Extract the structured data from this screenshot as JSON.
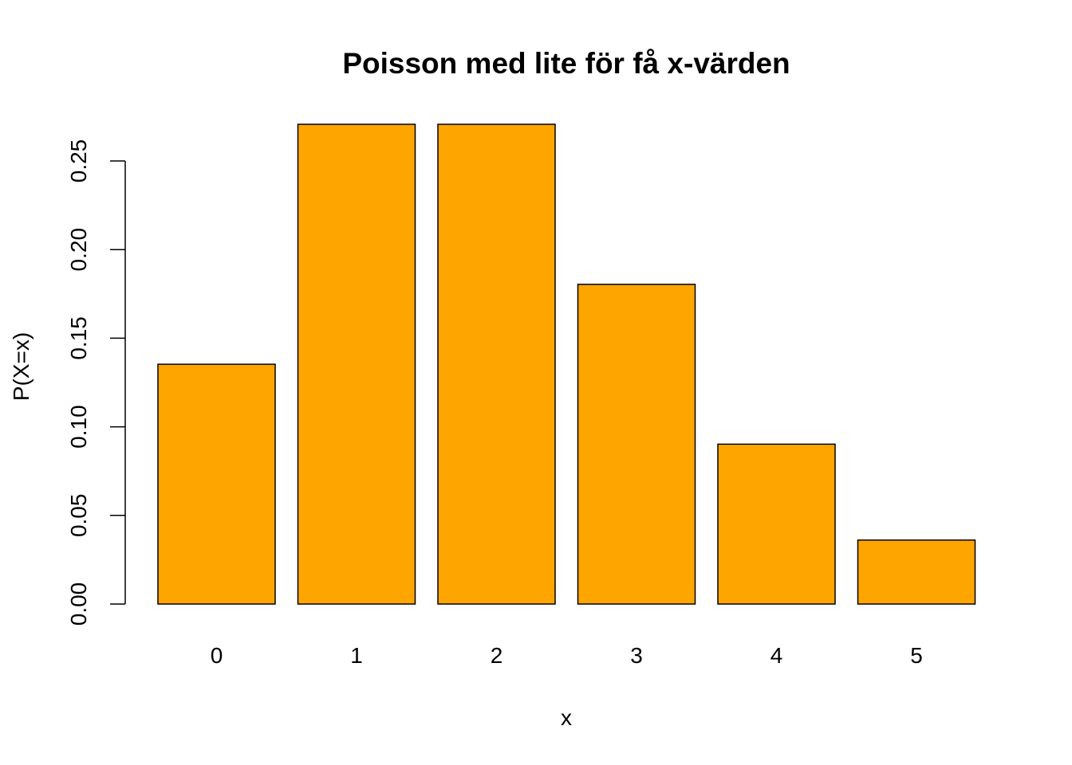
{
  "chart_data": {
    "type": "bar",
    "title": "Poisson med lite för få x-värden",
    "xlabel": "x",
    "ylabel": "P(X=x)",
    "categories": [
      "0",
      "1",
      "2",
      "3",
      "4",
      "5"
    ],
    "values": [
      0.1353,
      0.2707,
      0.2707,
      0.1804,
      0.0902,
      0.0361
    ],
    "ylim": [
      0,
      0.27
    ],
    "yticks": [
      0.0,
      0.05,
      0.1,
      0.15,
      0.2,
      0.25
    ],
    "ytick_labels": [
      "0.00",
      "0.05",
      "0.10",
      "0.15",
      "0.20",
      "0.25"
    ],
    "bar_color": "#FFA500",
    "bar_edge_color": "#000000",
    "grid": false,
    "legend": "none"
  }
}
